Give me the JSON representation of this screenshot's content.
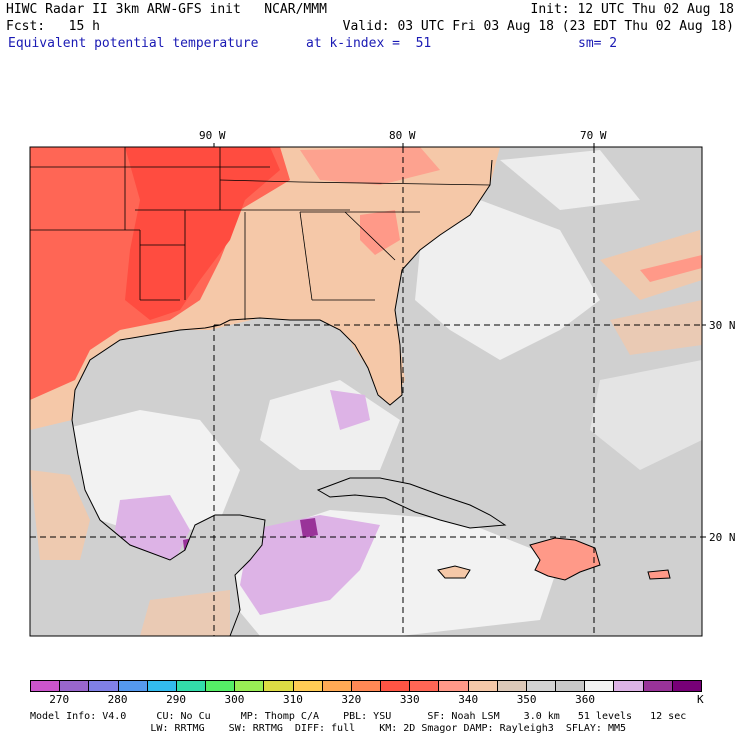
{
  "header": {
    "line1_left": "HIWC Radar II 3km ARW-GFS init   NCAR/MMM",
    "line1_right": "Init: 12 UTC Thu 02 Aug 18",
    "line2_left": "Fcst:   15 h",
    "line2_right": "Valid: 03 UTC Fri 03 Aug 18 (23 EDT Thu 02 Aug 18)",
    "line3_field": "Equivalent potential temperature",
    "line3_level": "at k-index =  51",
    "line3_smooth": "sm= 2"
  },
  "map": {
    "lon_labels": [
      "90 W",
      "80 W",
      "70 W"
    ],
    "lat_labels": [
      "30 N",
      "20 N"
    ]
  },
  "colorbar": {
    "colors": [
      "#cc55cc",
      "#9966cc",
      "#8080e6",
      "#5599ee",
      "#33bbee",
      "#33ddaa",
      "#55ee66",
      "#99ee55",
      "#dddd44",
      "#ffcc55",
      "#ffaa55",
      "#ff8855",
      "#ff5544",
      "#ff6655",
      "#ff9988",
      "#f5c8a8",
      "#ddc9b8",
      "#d2d2d2",
      "#c8c8c8",
      "#f2f2f2",
      "#ddb3e6",
      "#993399",
      "#770077"
    ],
    "tick_labels": [
      "270",
      "280",
      "290",
      "300",
      "310",
      "320",
      "330",
      "340",
      "350",
      "360"
    ],
    "unit": "K"
  },
  "footer": {
    "line1": "Model Info: V4.0     CU: No Cu     MP: Thomp C/A    PBL: YSU      SF: Noah LSM    3.0 km   51 levels   12 sec",
    "line2": "                    LW: RRTMG    SW: RRTMG  DIFF: full    KM: 2D Smagor DAMP: Rayleigh3  SFLAY: MM5"
  },
  "colors": {
    "ocean": "#d0d0d0",
    "land_warm": "#ff6655",
    "land_hot": "#ff4c40",
    "land_tan": "#f5c8a8",
    "pale": "#f2f2f2",
    "lavender": "#ddb3e6",
    "purple": "#993399"
  }
}
